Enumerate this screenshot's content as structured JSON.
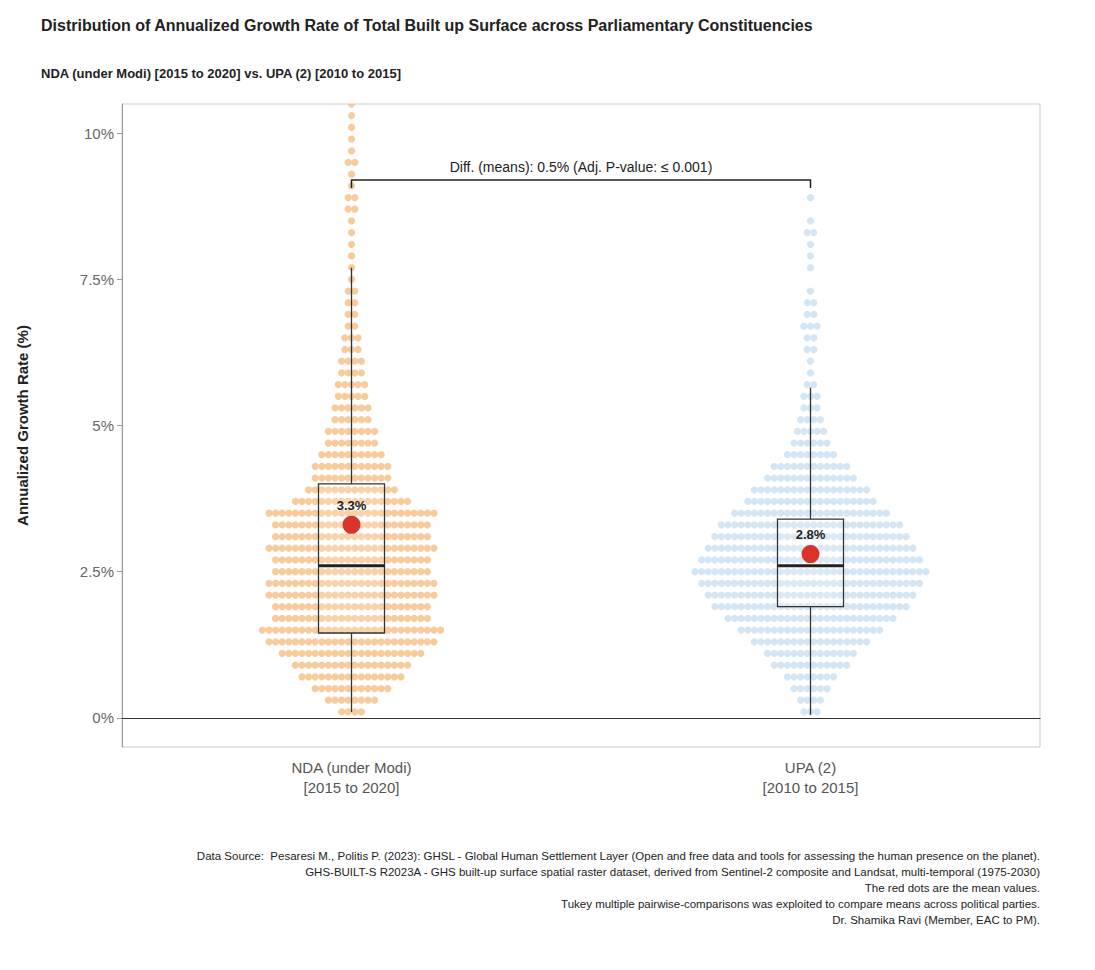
{
  "chart_data": {
    "type": "box_swarm",
    "title": "Distribution of Annualized Growth Rate of Total Built up Surface across Parliamentary Constituencies",
    "subtitle": "NDA (under Modi) [2015 to 2020] vs. UPA (2) [2010 to 2015]",
    "y_label": "Annualized Growth Rate (%)",
    "ylim": [
      -0.5,
      10.5
    ],
    "yticks": [
      {
        "value": 0,
        "label": "0%"
      },
      {
        "value": 2.5,
        "label": "2.5%"
      },
      {
        "value": 5,
        "label": "5%"
      },
      {
        "value": 7.5,
        "label": "7.5%"
      },
      {
        "value": 10,
        "label": "10%"
      }
    ],
    "grid": false,
    "data_labels": true,
    "categories": [
      "NDA (under Modi)\n[2015 to 2020]",
      "UPA (2)\n[2010 to 2015]"
    ],
    "series": [
      {
        "color": "#f6c590",
        "mean": 3.3,
        "mean_label": "3.3%",
        "box": {
          "whisker_low": 0.1,
          "q1": 1.45,
          "median": 2.6,
          "q3": 4.0,
          "whisker_high": 7.7
        },
        "swarm_levels": [
          0.1,
          0.3,
          0.5,
          0.7,
          0.9,
          1.1,
          1.3,
          1.5,
          1.7,
          1.9,
          2.1,
          2.3,
          2.5,
          2.7,
          2.9,
          3.1,
          3.3,
          3.5,
          3.7,
          3.9,
          4.1,
          4.3,
          4.5,
          4.7,
          4.9,
          5.1,
          5.3,
          5.5,
          5.7,
          5.9,
          6.1,
          6.3,
          6.5,
          6.7,
          6.9,
          7.1,
          7.3,
          7.5,
          7.7,
          7.9,
          8.1,
          8.3,
          8.5,
          8.7,
          8.9,
          9.1,
          9.3,
          9.5,
          9.7,
          9.9,
          10.1,
          10.3,
          10.5
        ],
        "swarm_counts": [
          4,
          8,
          12,
          16,
          18,
          22,
          26,
          28,
          24,
          24,
          26,
          26,
          24,
          24,
          26,
          24,
          24,
          26,
          18,
          14,
          12,
          12,
          10,
          8,
          8,
          6,
          6,
          5,
          5,
          4,
          4,
          3,
          3,
          2,
          2,
          2,
          2,
          1,
          1,
          1,
          1,
          1,
          1,
          2,
          2,
          1,
          1,
          2,
          1,
          1,
          1,
          1,
          1
        ]
      },
      {
        "color": "#cfe3f2",
        "mean": 2.8,
        "mean_label": "2.8%",
        "box": {
          "whisker_low": 0.05,
          "q1": 1.9,
          "median": 2.6,
          "q3": 3.4,
          "whisker_high": 5.65
        },
        "swarm_levels": [
          0.1,
          0.3,
          0.5,
          0.7,
          0.9,
          1.1,
          1.3,
          1.5,
          1.7,
          1.9,
          2.1,
          2.3,
          2.5,
          2.7,
          2.9,
          3.1,
          3.3,
          3.5,
          3.7,
          3.9,
          4.1,
          4.3,
          4.5,
          4.7,
          4.9,
          5.1,
          5.3,
          5.5,
          5.7,
          5.9,
          6.1,
          6.3,
          6.5,
          6.7,
          6.9,
          7.1,
          7.3,
          7.7,
          7.9,
          8.1,
          8.3,
          8.5,
          8.9
        ],
        "swarm_counts": [
          3,
          4,
          6,
          8,
          12,
          14,
          18,
          22,
          26,
          30,
          32,
          34,
          36,
          34,
          32,
          30,
          28,
          24,
          20,
          18,
          14,
          12,
          8,
          6,
          5,
          4,
          3,
          3,
          2,
          1,
          1,
          2,
          2,
          3,
          2,
          2,
          1,
          1,
          1,
          1,
          2,
          1,
          1
        ]
      }
    ],
    "annotation": {
      "text": "Diff. (means): 0.5% (Adj. P-value: ≤ 0.001)",
      "y": 9.2
    },
    "notes": [
      "Data Source:  Pesaresi M., Politis P. (2023): GHSL - Global Human Settlement Layer (Open and free data and tools for assessing the human presence on the planet).",
      "GHS-BUILT-S R2023A - GHS built-up surface spatial raster dataset, derived from Sentinel-2 composite and Landsat, multi-temporal (1975-2030)",
      "The red dots are the mean values.",
      "Tukey multiple pairwise-comparisons was exploited to compare means across political parties.",
      "Dr. Shamika Ravi (Member, EAC to PM)."
    ]
  }
}
